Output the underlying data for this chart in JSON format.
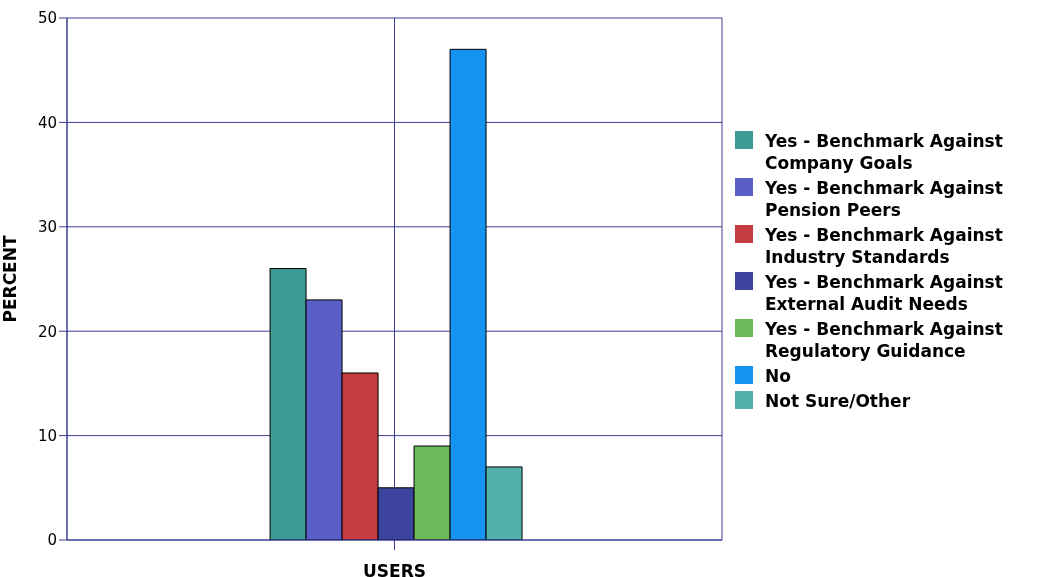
{
  "chart_data": {
    "type": "bar",
    "xlabel": "USERS",
    "ylabel": "PERCENT",
    "categories": [
      null
    ],
    "series": [
      {
        "name": "Yes - Benchmark Against Company Goals",
        "color": "#3d9b96",
        "values": [
          26
        ]
      },
      {
        "name": "Yes - Benchmark Against Pension Peers",
        "color": "#5a5fc8",
        "values": [
          23
        ]
      },
      {
        "name": "Yes - Benchmark Against Industry Standards",
        "color": "#c43c3f",
        "values": [
          16
        ]
      },
      {
        "name": "Yes - Benchmark Against External Audit Needs",
        "color": "#3c44a0",
        "values": [
          5
        ]
      },
      {
        "name": "Yes - Benchmark Against Regulatory Guidance",
        "color": "#6cbb5a",
        "values": [
          9
        ]
      },
      {
        "name": "No",
        "color": "#1593f0",
        "values": [
          47
        ]
      },
      {
        "name": "Not Sure/Other",
        "color": "#52b1ab",
        "values": [
          7
        ]
      }
    ],
    "ylim": [
      0,
      50
    ],
    "yticks": [
      0,
      10,
      20,
      30,
      40,
      50
    ],
    "grid": true,
    "legend": "right"
  }
}
